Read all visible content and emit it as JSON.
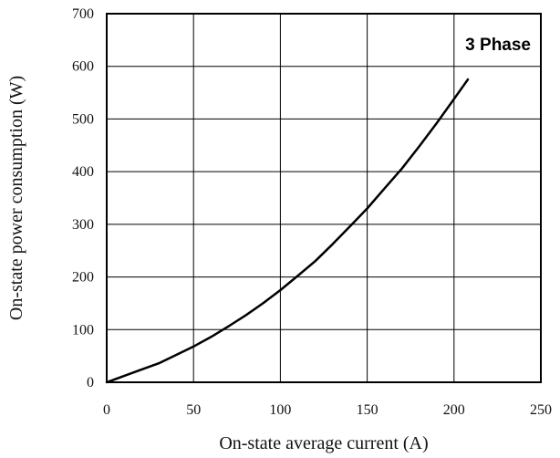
{
  "chart_data": {
    "type": "line",
    "title": "",
    "xlabel": "On-state average current (A)",
    "ylabel": "On-state power consumption (W)",
    "xlim": [
      0,
      250
    ],
    "ylim": [
      0,
      700
    ],
    "xticks": [
      0,
      50,
      100,
      150,
      200,
      250
    ],
    "yticks": [
      0,
      100,
      200,
      300,
      400,
      500,
      600,
      700
    ],
    "grid": true,
    "series": [
      {
        "annotation": "3 Phase",
        "color": "#000000",
        "x": [
          0,
          10,
          20,
          30,
          40,
          50,
          60,
          70,
          80,
          90,
          100,
          110,
          120,
          130,
          140,
          150,
          160,
          170,
          180,
          190,
          200,
          208
        ],
        "y": [
          0,
          12,
          24,
          36,
          52,
          68,
          86,
          106,
          127,
          150,
          175,
          202,
          230,
          262,
          296,
          330,
          368,
          406,
          448,
          492,
          538,
          575
        ]
      }
    ]
  }
}
